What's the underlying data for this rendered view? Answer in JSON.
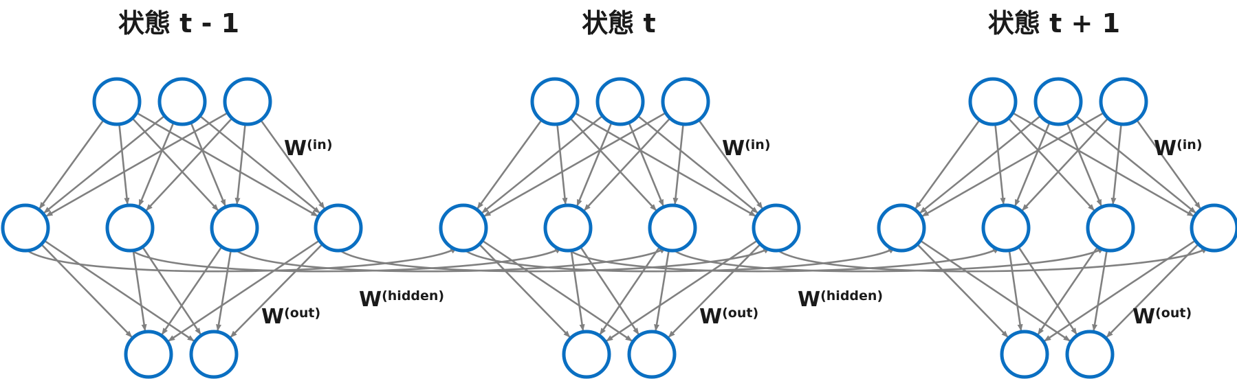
{
  "states": [
    {
      "title": "状態 t - 1",
      "w_in": {
        "base": "W",
        "sup": "(in)"
      },
      "w_out": {
        "base": "W",
        "sup": "(out)"
      }
    },
    {
      "title": "状態 t",
      "w_in": {
        "base": "W",
        "sup": "(in)"
      },
      "w_out": {
        "base": "W",
        "sup": "(out)"
      }
    },
    {
      "title": "状態 t + 1",
      "w_in": {
        "base": "W",
        "sup": "(in)"
      },
      "w_out": {
        "base": "W",
        "sup": "(out)"
      }
    }
  ],
  "hidden_weights": [
    {
      "base": "W",
      "sup": "(hidden)"
    },
    {
      "base": "W",
      "sup": "(hidden)"
    }
  ],
  "layers": {
    "input_nodes": 3,
    "hidden_nodes": 4,
    "output_nodes": 2
  },
  "colors": {
    "node_stroke": "#0a6fc2",
    "edge": "#808080"
  }
}
